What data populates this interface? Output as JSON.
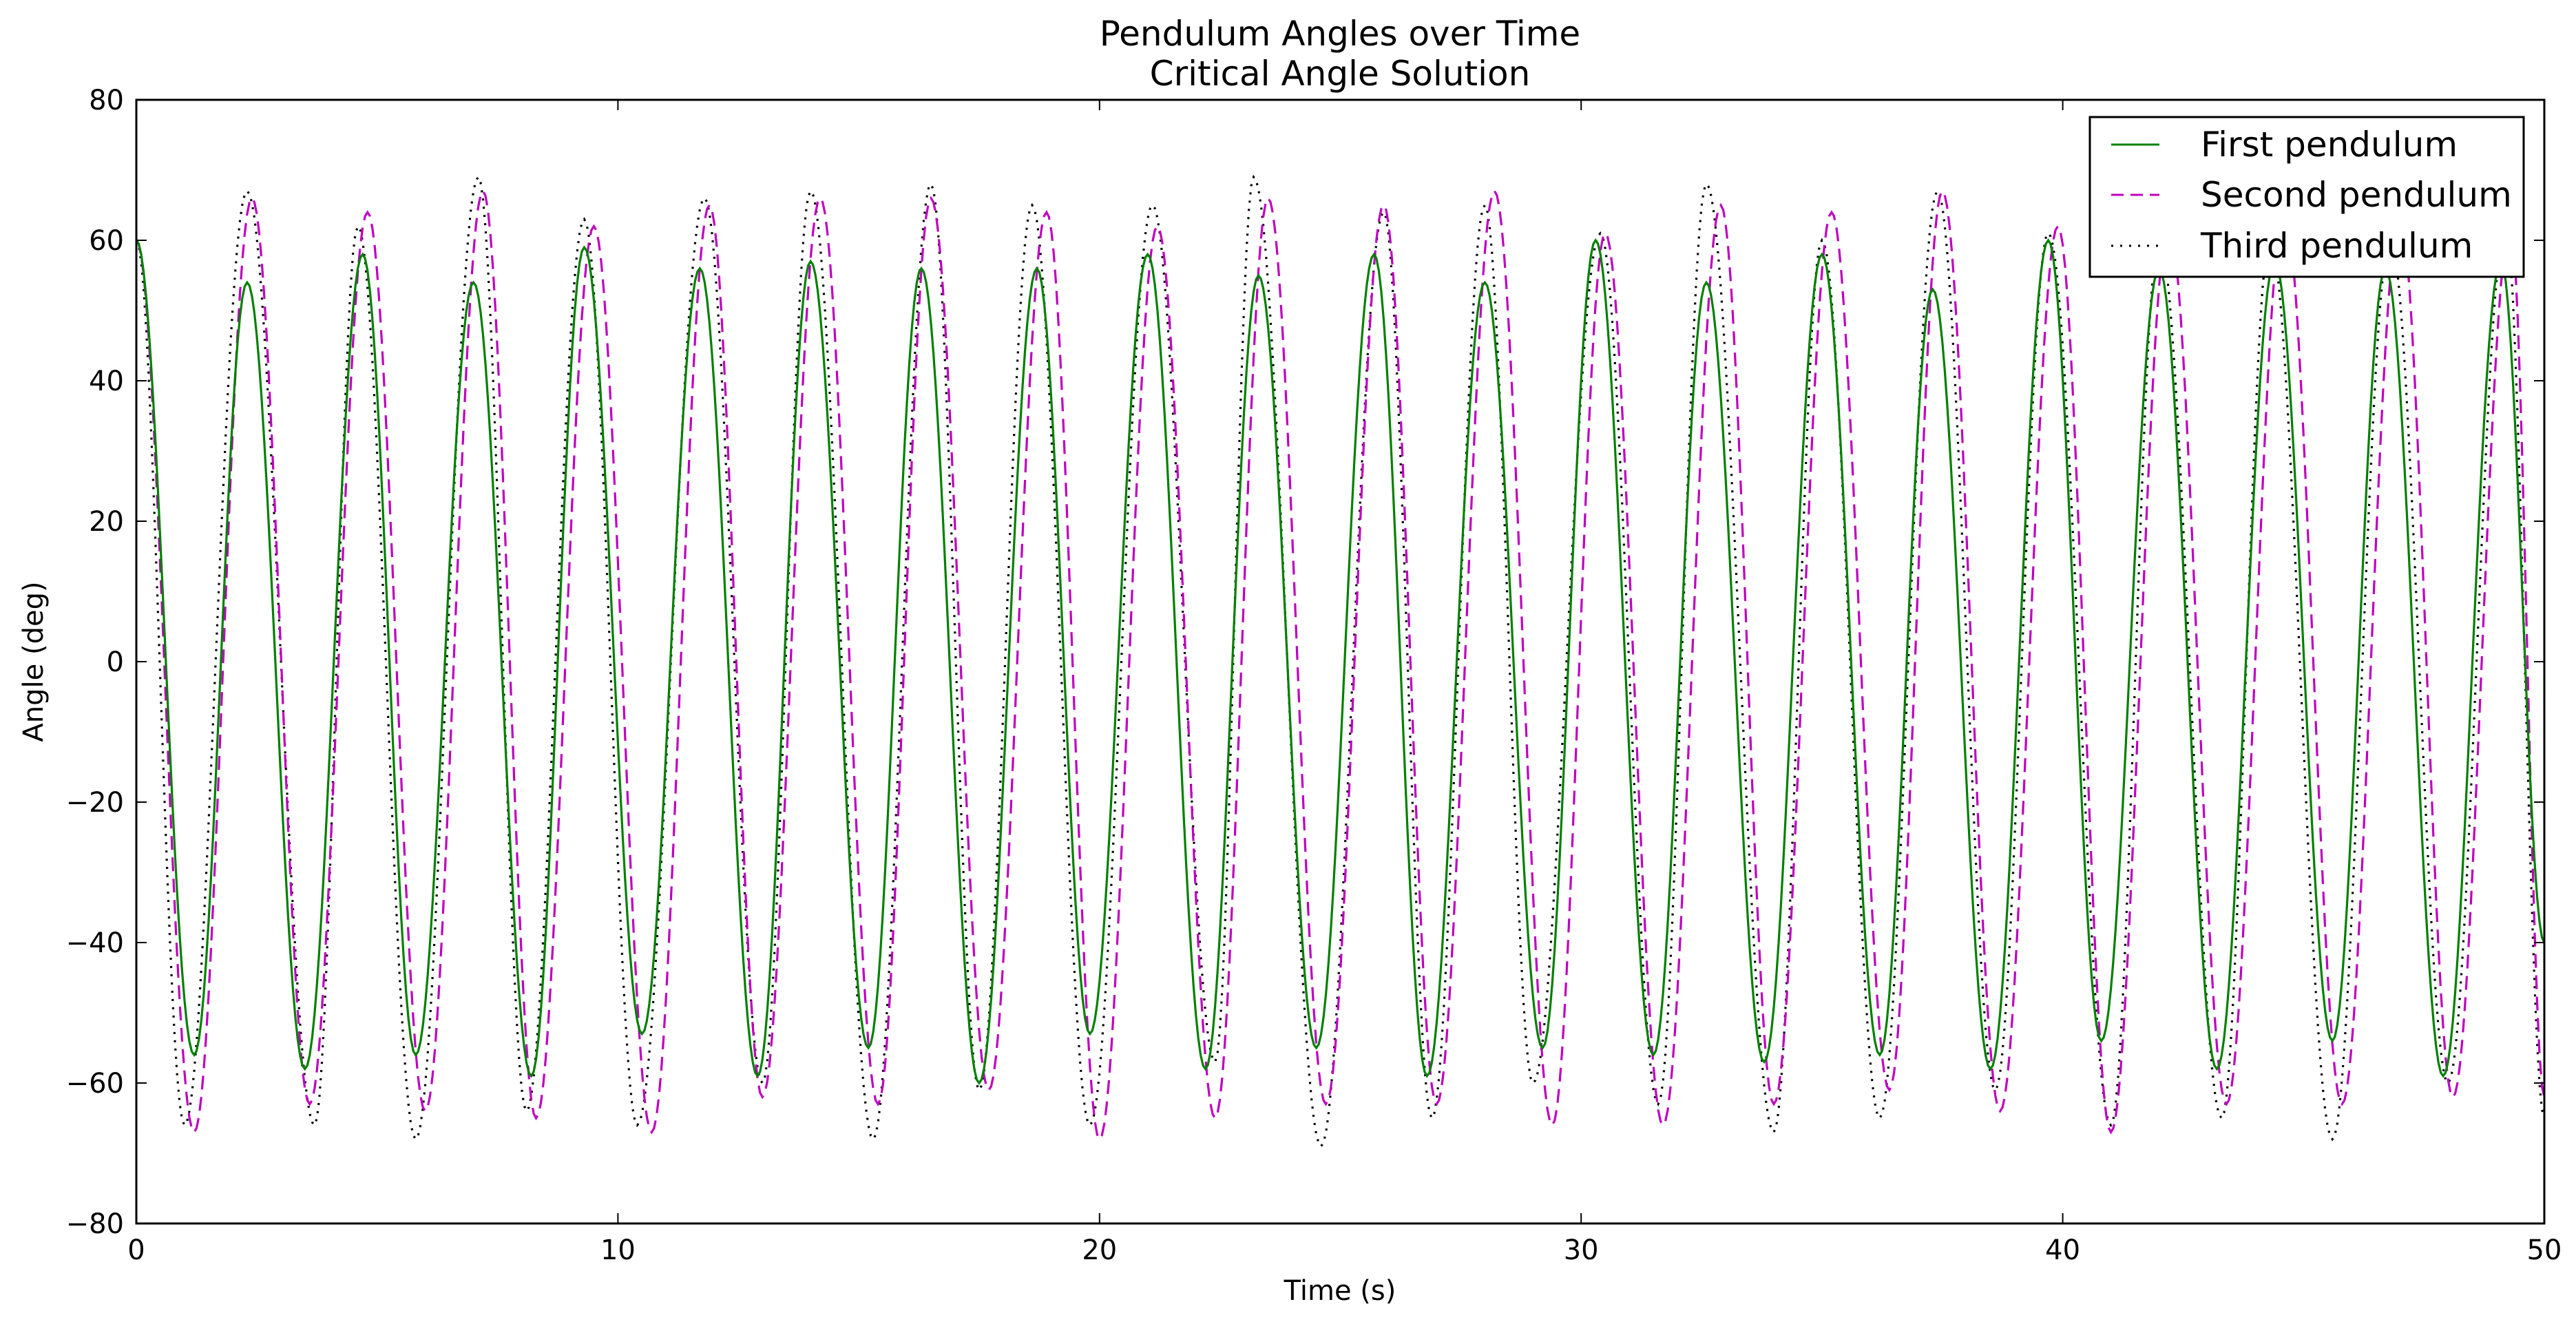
{
  "chart_data": {
    "type": "line",
    "title": "Pendulum Angles over Time",
    "subtitle": "Critical Angle Solution",
    "xlabel": "Time (s)",
    "ylabel": "Angle (deg)",
    "xlim": [
      0,
      50
    ],
    "ylim": [
      -80,
      80
    ],
    "x_ticks": [
      0,
      10,
      20,
      30,
      40,
      50
    ],
    "y_ticks": [
      -80,
      -60,
      -40,
      -20,
      0,
      20,
      40,
      60,
      80
    ],
    "grid": false,
    "legend_position": "top-right",
    "sample_step": 0.05,
    "series": [
      {
        "name": "First pendulum",
        "color": "#008000",
        "line_style": "solid",
        "extrema": [
          [
            0.0,
            60
          ],
          [
            1.2,
            -56
          ],
          [
            2.3,
            54
          ],
          [
            3.5,
            -58
          ],
          [
            4.7,
            58
          ],
          [
            5.8,
            -56
          ],
          [
            7.0,
            54
          ],
          [
            8.2,
            -59
          ],
          [
            9.3,
            59
          ],
          [
            10.5,
            -53
          ],
          [
            11.7,
            56
          ],
          [
            12.9,
            -59
          ],
          [
            14.0,
            57
          ],
          [
            15.2,
            -55
          ],
          [
            16.3,
            56
          ],
          [
            17.5,
            -60
          ],
          [
            18.7,
            56
          ],
          [
            19.8,
            -53
          ],
          [
            21.0,
            58
          ],
          [
            22.2,
            -58
          ],
          [
            23.3,
            55
          ],
          [
            24.5,
            -55
          ],
          [
            25.7,
            58
          ],
          [
            26.8,
            -59
          ],
          [
            28.0,
            54
          ],
          [
            29.2,
            -55
          ],
          [
            30.3,
            60
          ],
          [
            31.5,
            -56
          ],
          [
            32.6,
            54
          ],
          [
            33.8,
            -57
          ],
          [
            35.0,
            58
          ],
          [
            36.2,
            -56
          ],
          [
            37.3,
            53
          ],
          [
            38.5,
            -58
          ],
          [
            39.7,
            60
          ],
          [
            40.8,
            -54
          ],
          [
            42.0,
            56
          ],
          [
            43.2,
            -58
          ],
          [
            44.4,
            57
          ],
          [
            45.6,
            -54
          ],
          [
            46.7,
            56
          ],
          [
            47.9,
            -59
          ],
          [
            49.1,
            57
          ],
          [
            50.0,
            -40
          ]
        ]
      },
      {
        "name": "Second pendulum",
        "color": "#bf00bf",
        "line_style": "dashed",
        "extrema": [
          [
            0.0,
            60
          ],
          [
            1.2,
            -67
          ],
          [
            2.4,
            66
          ],
          [
            3.6,
            -63
          ],
          [
            4.8,
            64
          ],
          [
            6.0,
            -64
          ],
          [
            7.2,
            67
          ],
          [
            8.3,
            -65
          ],
          [
            9.5,
            62
          ],
          [
            10.7,
            -67
          ],
          [
            11.9,
            65
          ],
          [
            13.0,
            -62
          ],
          [
            14.2,
            66
          ],
          [
            15.4,
            -63
          ],
          [
            16.5,
            66
          ],
          [
            17.7,
            -61
          ],
          [
            18.9,
            64
          ],
          [
            20.0,
            -68
          ],
          [
            21.2,
            62
          ],
          [
            22.4,
            -65
          ],
          [
            23.5,
            66
          ],
          [
            24.7,
            -63
          ],
          [
            25.9,
            65
          ],
          [
            27.0,
            -63
          ],
          [
            28.2,
            67
          ],
          [
            29.4,
            -66
          ],
          [
            30.5,
            61
          ],
          [
            31.7,
            -66
          ],
          [
            32.9,
            65
          ],
          [
            34.0,
            -63
          ],
          [
            35.2,
            64
          ],
          [
            36.4,
            -61
          ],
          [
            37.5,
            67
          ],
          [
            38.7,
            -64
          ],
          [
            39.9,
            62
          ],
          [
            41.0,
            -67
          ],
          [
            42.2,
            62
          ],
          [
            43.4,
            -63
          ],
          [
            44.6,
            64
          ],
          [
            45.8,
            -63
          ],
          [
            47.0,
            63
          ],
          [
            48.1,
            -62
          ],
          [
            49.3,
            62
          ],
          [
            50.0,
            -62
          ]
        ]
      },
      {
        "name": "Third pendulum",
        "color": "#000000",
        "line_style": "dotted",
        "extrema": [
          [
            0.0,
            60
          ],
          [
            1.0,
            -66
          ],
          [
            2.3,
            67
          ],
          [
            3.7,
            -66
          ],
          [
            4.6,
            62
          ],
          [
            5.8,
            -68
          ],
          [
            7.1,
            69
          ],
          [
            8.1,
            -64
          ],
          [
            9.3,
            63
          ],
          [
            10.4,
            -66
          ],
          [
            11.8,
            66
          ],
          [
            13.0,
            -60
          ],
          [
            14.0,
            67
          ],
          [
            15.3,
            -68
          ],
          [
            16.5,
            68
          ],
          [
            17.5,
            -61
          ],
          [
            18.6,
            65
          ],
          [
            19.8,
            -66
          ],
          [
            21.1,
            65
          ],
          [
            22.4,
            -57
          ],
          [
            23.2,
            69
          ],
          [
            24.6,
            -69
          ],
          [
            25.9,
            64
          ],
          [
            26.9,
            -65
          ],
          [
            28.0,
            65
          ],
          [
            29.0,
            -60
          ],
          [
            30.4,
            61
          ],
          [
            31.6,
            -63
          ],
          [
            32.6,
            68
          ],
          [
            34.0,
            -67
          ],
          [
            35.0,
            60
          ],
          [
            36.2,
            -65
          ],
          [
            37.4,
            67
          ],
          [
            38.6,
            -61
          ],
          [
            39.7,
            61
          ],
          [
            41.0,
            -66
          ],
          [
            42.0,
            60
          ],
          [
            43.3,
            -65
          ],
          [
            44.3,
            60
          ],
          [
            45.6,
            -68
          ],
          [
            46.8,
            60
          ],
          [
            48.0,
            -60
          ],
          [
            49.2,
            62
          ],
          [
            50.0,
            -65
          ]
        ]
      }
    ]
  }
}
